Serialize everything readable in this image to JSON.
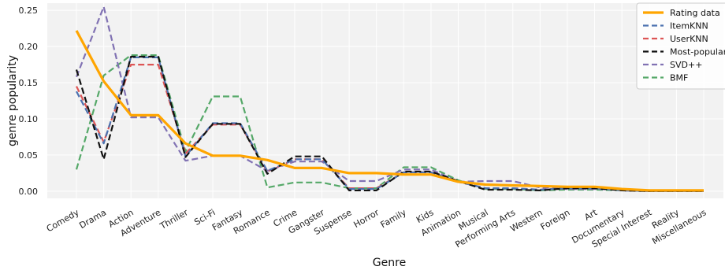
{
  "chart_data": {
    "type": "line",
    "title": "",
    "xlabel": "Genre",
    "ylabel": "genre popularity",
    "ylim": [
      -0.01,
      0.26
    ],
    "yticks": [
      0.0,
      0.05,
      0.1,
      0.15,
      0.2,
      0.25
    ],
    "ytick_labels": [
      "0.00",
      "0.05",
      "0.10",
      "0.15",
      "0.20",
      "0.25"
    ],
    "grid": true,
    "legend": "top-right",
    "categories": [
      "Comedy",
      "Drama",
      "Action",
      "Adventure",
      "Thriller",
      "Sci-Fi",
      "Fantasy",
      "Romance",
      "Crime",
      "Gangster",
      "Suspense",
      "Horror",
      "Family",
      "Kids",
      "Animation",
      "Musical",
      "Performing Arts",
      "Western",
      "Foreign",
      "Art",
      "Documentary",
      "Special Interest",
      "Reality",
      "Miscellaneous"
    ],
    "series": [
      {
        "name": "Rating data",
        "color": "#ffa500",
        "style": "solid",
        "values": [
          0.222,
          0.152,
          0.105,
          0.105,
          0.066,
          0.049,
          0.049,
          0.043,
          0.032,
          0.032,
          0.025,
          0.025,
          0.023,
          0.023,
          0.013,
          0.009,
          0.008,
          0.007,
          0.006,
          0.006,
          0.003,
          0.001,
          0.001,
          0.001
        ]
      },
      {
        "name": "ItemKNN",
        "color": "#4c72b0",
        "style": "dashed",
        "values": [
          0.138,
          0.066,
          0.185,
          0.185,
          0.048,
          0.094,
          0.094,
          0.028,
          0.044,
          0.044,
          0.003,
          0.003,
          0.026,
          0.026,
          0.013,
          0.004,
          0.004,
          0.002,
          0.004,
          0.004,
          0.001,
          0.0,
          0.0,
          0.0
        ]
      },
      {
        "name": "UserKNN",
        "color": "#dd5555",
        "style": "dashed",
        "values": [
          0.145,
          0.068,
          0.175,
          0.175,
          0.052,
          0.092,
          0.092,
          0.027,
          0.044,
          0.044,
          0.004,
          0.004,
          0.026,
          0.026,
          0.013,
          0.004,
          0.004,
          0.002,
          0.004,
          0.004,
          0.001,
          0.0,
          0.0,
          0.0
        ]
      },
      {
        "name": "Most-popular",
        "color": "#111111",
        "style": "dashed",
        "values": [
          0.168,
          0.044,
          0.186,
          0.186,
          0.047,
          0.093,
          0.093,
          0.024,
          0.048,
          0.048,
          0.001,
          0.001,
          0.027,
          0.027,
          0.014,
          0.002,
          0.002,
          0.001,
          0.004,
          0.004,
          0.001,
          0.0,
          0.0,
          0.0
        ]
      },
      {
        "name": "SVD++",
        "color": "#8172b3",
        "style": "dashed",
        "values": [
          0.158,
          0.255,
          0.102,
          0.102,
          0.042,
          0.049,
          0.049,
          0.028,
          0.041,
          0.041,
          0.014,
          0.014,
          0.03,
          0.03,
          0.013,
          0.014,
          0.014,
          0.005,
          0.003,
          0.003,
          0.002,
          0.001,
          0.001,
          0.001
        ]
      },
      {
        "name": "BMF",
        "color": "#55a868",
        "style": "dashed",
        "values": [
          0.03,
          0.16,
          0.188,
          0.188,
          0.055,
          0.131,
          0.131,
          0.005,
          0.012,
          0.012,
          0.004,
          0.004,
          0.033,
          0.033,
          0.015,
          0.003,
          0.003,
          0.001,
          0.002,
          0.002,
          0.001,
          0.0,
          0.0,
          0.0
        ]
      }
    ]
  }
}
